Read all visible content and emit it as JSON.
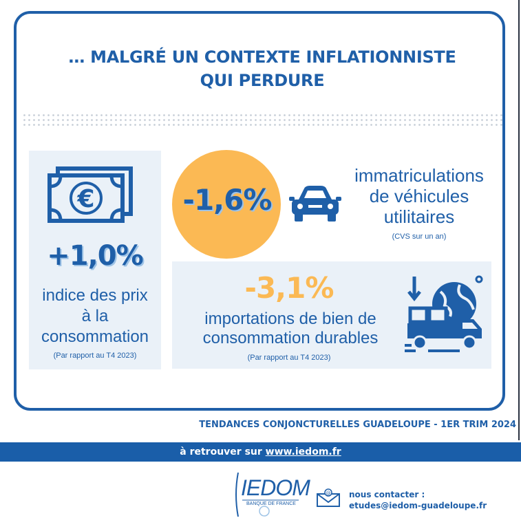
{
  "headline": {
    "line1": "… MALGRÉ UN CONTEXTE INFLATIONNISTE",
    "line2": "QUI PERDURE"
  },
  "cpi": {
    "value": "+1,0%",
    "label_line1": "indice des prix",
    "label_line2": "à la",
    "label_line3": "consommation",
    "note": "(Par rapport au T4 2023)",
    "icon": "euro-banknote-icon"
  },
  "vehicles": {
    "value": "-1,6%",
    "label_line1": "immatriculations",
    "label_line2": "de véhicules",
    "label_line3": "utilitaires",
    "note": "(CVS sur un an)",
    "icon": "car-icon"
  },
  "imports": {
    "value": "-3,1%",
    "label_line1": "importations de bien de",
    "label_line2": "consommation durables",
    "note": "(Par rapport au T4 2023)",
    "icon": "globe-truck-icon"
  },
  "footer": {
    "publication": "TENDANCES CONJONCTURELLES GUADELOUPE - 1ER TRIM 2024",
    "banner_prefix": "à retrouver sur ",
    "banner_link": "www.iedom.fr",
    "logo_text": "IEDOM",
    "logo_sub": "BANQUE DE FRANCE",
    "contact_label": "nous contacter :",
    "contact_email": "etudes@iedom-guadeloupe.fr"
  },
  "colors": {
    "primary_blue": "#1f5fa8",
    "accent_orange": "#fbb954",
    "panel_bg": "#eaf1f8"
  }
}
